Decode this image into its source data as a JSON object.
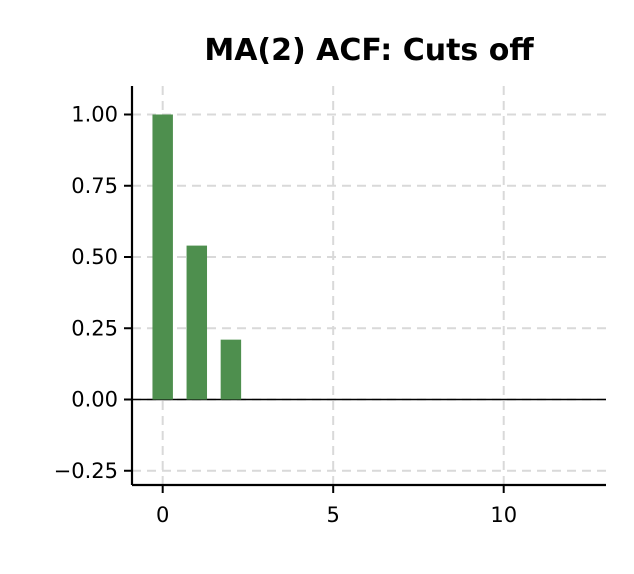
{
  "chart_data": {
    "type": "bar",
    "title": "MA(2) ACF: Cuts off",
    "xlabel": "",
    "ylabel": "",
    "x": [
      0,
      1,
      2,
      3,
      4,
      5,
      6,
      7,
      8,
      9,
      10,
      11,
      12
    ],
    "values": [
      1.0,
      0.54,
      0.21,
      0,
      0,
      0,
      0,
      0,
      0,
      0,
      0,
      0,
      0
    ],
    "xlim": [
      -0.9,
      13.0
    ],
    "ylim": [
      -0.3,
      1.1
    ],
    "xticks": [
      {
        "value": 0,
        "label": "0"
      },
      {
        "value": 5,
        "label": "5"
      },
      {
        "value": 10,
        "label": "10"
      }
    ],
    "yticks": [
      {
        "value": 1.0,
        "label": "1.00"
      },
      {
        "value": 0.75,
        "label": "0.75"
      },
      {
        "value": 0.5,
        "label": "0.50"
      },
      {
        "value": 0.25,
        "label": "0.25"
      },
      {
        "value": 0.0,
        "label": "0.00"
      },
      {
        "value": -0.25,
        "label": "−0.25"
      }
    ],
    "grid": true,
    "zero_line": true,
    "bar_color": "#4e8f4e"
  }
}
